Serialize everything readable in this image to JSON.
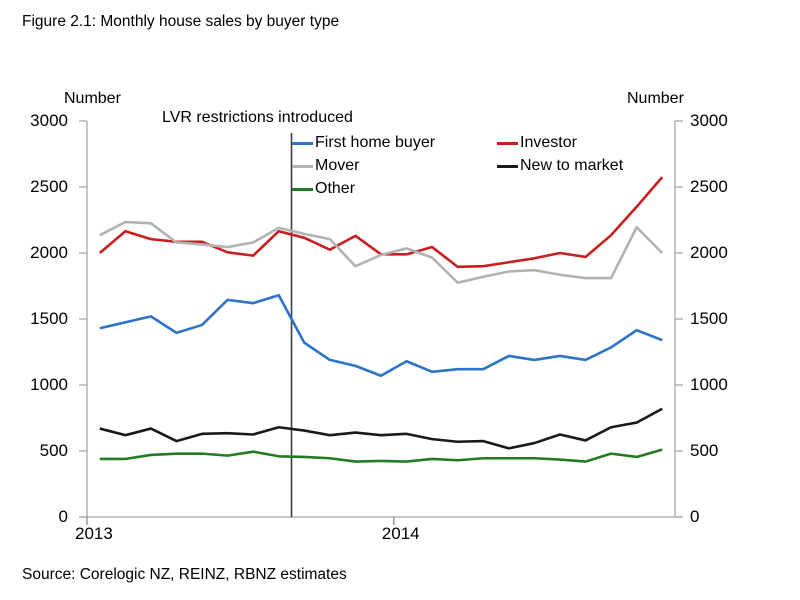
{
  "figure": {
    "title": "Figure 2.1: Monthly house sales by buyer type",
    "source": "Source: Corelogic NZ, REINZ, RBNZ estimates"
  },
  "axes": {
    "y_left_label": "Number",
    "y_right_label": "Number",
    "y_tick_values": [
      3000,
      2500,
      2000,
      1500,
      1000,
      500,
      0
    ],
    "x_tick_labels": [
      "2013",
      "2014"
    ],
    "x_tick_boundary_indices": [
      0,
      12
    ]
  },
  "annotation": {
    "text": "LVR restrictions introduced",
    "line_boundary_index": 8,
    "position": "between Aug 2013 and Sep 2013",
    "line_color": "#3c3c3c"
  },
  "legend": {
    "items": [
      {
        "label": "First home buyer",
        "color": "#2c74c8"
      },
      {
        "label": "Investor",
        "color": "#c81e1e"
      },
      {
        "label": "Mover",
        "color": "#b2b2b2"
      },
      {
        "label": "New to market",
        "color": "#1a1a1a"
      },
      {
        "label": "Other",
        "color": "#227a22"
      }
    ]
  },
  "chart_data": {
    "type": "line",
    "title": "Figure 2.1: Monthly house sales by buyer type",
    "xlabel": "",
    "ylabel": "Number",
    "ylim": [
      0,
      3000
    ],
    "y_tick_step": 500,
    "grid": false,
    "legend_position": "top-inside",
    "x": [
      "Jan 2013",
      "Feb 2013",
      "Mar 2013",
      "Apr 2013",
      "May 2013",
      "Jun 2013",
      "Jul 2013",
      "Aug 2013",
      "Sep 2013",
      "Oct 2013",
      "Nov 2013",
      "Dec 2013",
      "Jan 2014",
      "Feb 2014",
      "Mar 2014",
      "Apr 2014",
      "May 2014",
      "Jun 2014",
      "Jul 2014",
      "Aug 2014",
      "Sep 2014",
      "Oct 2014",
      "Nov 2014"
    ],
    "series": [
      {
        "name": "First home buyer",
        "color": "#2c74c8",
        "values": [
          1430,
          1475,
          1520,
          1395,
          1455,
          1645,
          1620,
          1680,
          1320,
          1190,
          1145,
          1070,
          1180,
          1100,
          1120,
          1120,
          1220,
          1190,
          1220,
          1190,
          1285,
          1415,
          1340
        ]
      },
      {
        "name": "Investor",
        "color": "#c81e1e",
        "values": [
          2000,
          2165,
          2105,
          2085,
          2085,
          2005,
          1980,
          2165,
          2115,
          2025,
          2130,
          1990,
          1990,
          2045,
          1895,
          1900,
          1930,
          1960,
          2000,
          1970,
          2135,
          2350,
          2575
        ]
      },
      {
        "name": "Mover",
        "color": "#b2b2b2",
        "values": [
          2135,
          2235,
          2225,
          2080,
          2065,
          2045,
          2080,
          2190,
          2145,
          2105,
          1900,
          1985,
          2035,
          1965,
          1775,
          1820,
          1860,
          1870,
          1835,
          1810,
          1810,
          2195,
          2000
        ]
      },
      {
        "name": "New to market",
        "color": "#1a1a1a",
        "values": [
          670,
          620,
          670,
          575,
          630,
          635,
          625,
          680,
          655,
          620,
          640,
          620,
          630,
          590,
          570,
          575,
          520,
          560,
          625,
          580,
          680,
          715,
          820
        ]
      },
      {
        "name": "Other",
        "color": "#227a22",
        "values": [
          440,
          440,
          470,
          480,
          480,
          465,
          495,
          460,
          455,
          445,
          420,
          425,
          420,
          440,
          430,
          445,
          445,
          445,
          435,
          420,
          480,
          455,
          510
        ]
      }
    ],
    "vline_annotation": {
      "text": "LVR restrictions introduced",
      "between": [
        "Aug 2013",
        "Sep 2013"
      ]
    }
  }
}
